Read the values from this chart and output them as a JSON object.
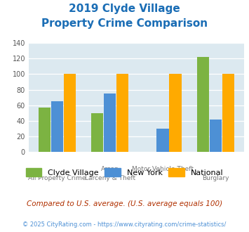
{
  "title_line1": "2019 Clyde Village",
  "title_line2": "Property Crime Comparison",
  "title_color": "#1a6db5",
  "cat_labels_top": [
    "",
    "Arson",
    "Motor Vehicle Theft",
    ""
  ],
  "cat_labels_bot": [
    "All Property Crime",
    "Larceny & Theft",
    "",
    "Burglary"
  ],
  "clyde_village": [
    57,
    50,
    0,
    122
  ],
  "new_york": [
    65,
    75,
    30,
    42
  ],
  "national": [
    100,
    100,
    100,
    100
  ],
  "clyde_color": "#7cb342",
  "ny_color": "#4d90d5",
  "national_color": "#ffaa00",
  "ylim": [
    0,
    140
  ],
  "yticks": [
    0,
    20,
    40,
    60,
    80,
    100,
    120,
    140
  ],
  "bg_color": "#dce9f0",
  "legend_labels": [
    "Clyde Village",
    "New York",
    "National"
  ],
  "footnote1": "Compared to U.S. average. (U.S. average equals 100)",
  "footnote2": "© 2025 CityRating.com - https://www.cityrating.com/crime-statistics/",
  "footnote1_color": "#b03000",
  "footnote2_color": "#4d90d5"
}
